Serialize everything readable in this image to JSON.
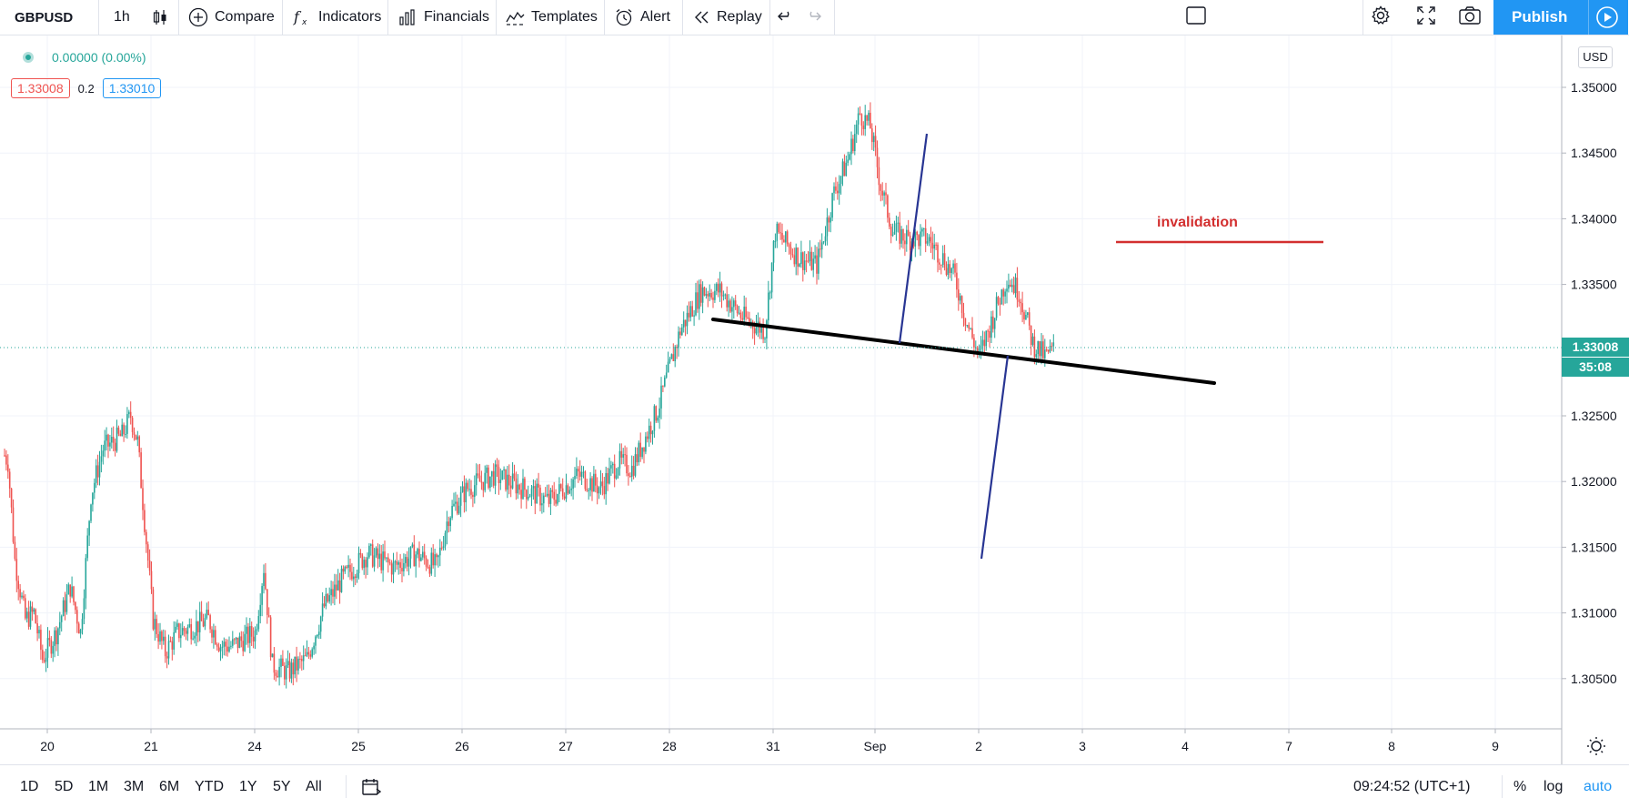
{
  "toolbar": {
    "symbol": "GBPUSD",
    "interval": "1h",
    "compare": "Compare",
    "indicators": "Indicators",
    "financials": "Financials",
    "templates": "Templates",
    "alert": "Alert",
    "replay": "Replay",
    "publish": "Publish"
  },
  "legend": {
    "change": "0.00000 (0.00%)",
    "bid": "1.33008",
    "spread": "0.2",
    "ask": "1.33010"
  },
  "price_axis": {
    "currency": "USD",
    "current_price": "1.33008",
    "countdown": "35:08"
  },
  "annotation": {
    "invalidation": "invalidation"
  },
  "bottombar": {
    "ranges": [
      "1D",
      "5D",
      "1M",
      "3M",
      "6M",
      "YTD",
      "1Y",
      "5Y",
      "All"
    ],
    "clock": "09:24:52 (UTC+1)",
    "percent": "%",
    "log": "log",
    "auto": "auto"
  },
  "colors": {
    "up": "#26a69a",
    "down": "#ef5350",
    "accent": "#2196f3",
    "invalidation": "#d32f2f"
  },
  "chart_data": {
    "type": "candlestick",
    "symbol": "GBPUSD",
    "interval": "1h",
    "y_ticks": [
      1.35,
      1.345,
      1.34,
      1.335,
      1.325,
      1.32,
      1.315,
      1.31,
      1.305
    ],
    "y_tick_labels": [
      "1.35000",
      "1.34500",
      "1.34000",
      "1.33500",
      "1.32500",
      "1.32000",
      "1.31500",
      "1.31000",
      "1.30500"
    ],
    "x_tick_labels": [
      "20",
      "21",
      "24",
      "25",
      "26",
      "27",
      "28",
      "31",
      "Sep",
      "2",
      "3",
      "4",
      "7",
      "8",
      "9"
    ],
    "ylim": [
      1.3005,
      1.3522
    ],
    "current_price": 1.33008,
    "path": [
      [
        0,
        1.322
      ],
      [
        2,
        1.3215
      ],
      [
        6,
        1.314
      ],
      [
        12,
        1.3095
      ],
      [
        17,
        1.31
      ],
      [
        22,
        1.3065
      ],
      [
        30,
        1.3085
      ],
      [
        38,
        1.312
      ],
      [
        44,
        1.3085
      ],
      [
        50,
        1.319
      ],
      [
        57,
        1.3225
      ],
      [
        68,
        1.3235
      ],
      [
        73,
        1.325
      ],
      [
        77,
        1.323
      ],
      [
        86,
        1.3095
      ],
      [
        93,
        1.307
      ],
      [
        100,
        1.3085
      ],
      [
        110,
        1.309
      ],
      [
        118,
        1.3095
      ],
      [
        125,
        1.3075
      ],
      [
        132,
        1.3075
      ],
      [
        145,
        1.3085
      ],
      [
        150,
        1.3135
      ],
      [
        155,
        1.306
      ],
      [
        164,
        1.3055
      ],
      [
        175,
        1.3065
      ],
      [
        185,
        1.3105
      ],
      [
        195,
        1.3125
      ],
      [
        210,
        1.3145
      ],
      [
        225,
        1.3135
      ],
      [
        238,
        1.3145
      ],
      [
        250,
        1.3135
      ],
      [
        257,
        1.3175
      ],
      [
        268,
        1.3195
      ],
      [
        283,
        1.3205
      ],
      [
        300,
        1.3195
      ],
      [
        315,
        1.3185
      ],
      [
        332,
        1.3205
      ],
      [
        345,
        1.3195
      ],
      [
        355,
        1.3215
      ],
      [
        363,
        1.321
      ],
      [
        378,
        1.3255
      ],
      [
        391,
        1.3315
      ],
      [
        403,
        1.3345
      ],
      [
        414,
        1.3345
      ],
      [
        427,
        1.3325
      ],
      [
        440,
        1.3315
      ],
      [
        446,
        1.339
      ],
      [
        460,
        1.337
      ],
      [
        470,
        1.3365
      ],
      [
        480,
        1.342
      ],
      [
        488,
        1.3445
      ],
      [
        495,
        1.348
      ],
      [
        501,
        1.347
      ],
      [
        507,
        1.3425
      ],
      [
        514,
        1.339
      ],
      [
        523,
        1.3385
      ],
      [
        534,
        1.3385
      ],
      [
        543,
        1.337
      ],
      [
        550,
        1.3355
      ],
      [
        557,
        1.332
      ],
      [
        564,
        1.3295
      ],
      [
        572,
        1.3325
      ],
      [
        580,
        1.3355
      ],
      [
        587,
        1.3345
      ],
      [
        595,
        1.3305
      ],
      [
        602,
        1.3295
      ],
      [
        607,
        1.33
      ]
    ]
  }
}
